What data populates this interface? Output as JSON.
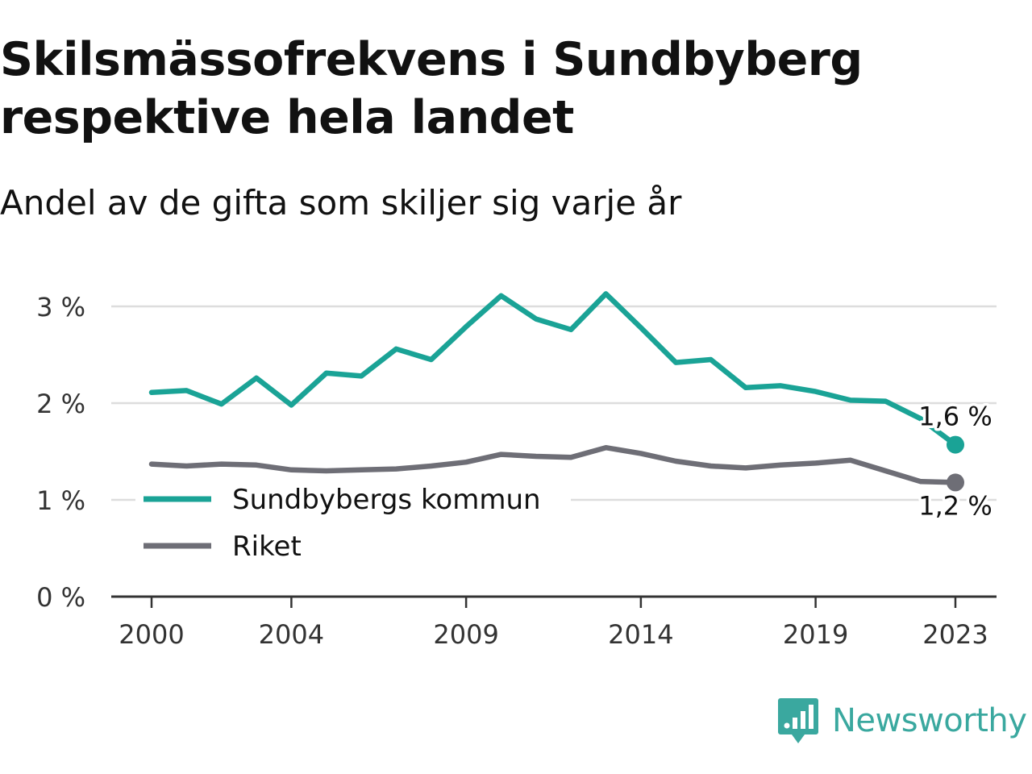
{
  "header": {
    "title": "Skilsmässofrekvens i Sundbyberg respektive hela landet",
    "subtitle": "Andel av de gifta som skiljer sig varje år"
  },
  "brand": {
    "name": "Newsworthy",
    "icon": "newsworthy-logo-icon",
    "color": "#3aa89f"
  },
  "chart_data": {
    "type": "line",
    "title": "Skilsmässofrekvens i Sundbyberg respektive hela landet",
    "subtitle": "Andel av de gifta som skiljer sig varje år",
    "xlabel": "",
    "ylabel": "",
    "x": [
      2000,
      2001,
      2002,
      2003,
      2004,
      2005,
      2006,
      2007,
      2008,
      2009,
      2010,
      2011,
      2012,
      2013,
      2014,
      2015,
      2016,
      2017,
      2018,
      2019,
      2020,
      2021,
      2022,
      2023
    ],
    "x_ticks": [
      2000,
      2004,
      2009,
      2014,
      2019,
      2023
    ],
    "x_tick_labels": [
      "2000",
      "2004",
      "2009",
      "2014",
      "2019",
      "2023"
    ],
    "xlim": [
      2000,
      2023
    ],
    "y_ticks": [
      0,
      1,
      2,
      3
    ],
    "y_tick_labels": [
      "0 %",
      "1 %",
      "2 %",
      "3 %"
    ],
    "ylim": [
      0,
      3.3
    ],
    "grid": true,
    "legend_position": "bottom-left",
    "series": [
      {
        "name": "Sundbybergs kommun",
        "color": "#1aa396",
        "values": [
          2.11,
          2.13,
          1.99,
          2.26,
          1.98,
          2.31,
          2.28,
          2.56,
          2.45,
          2.79,
          3.11,
          2.87,
          2.76,
          3.13,
          2.78,
          2.42,
          2.45,
          2.16,
          2.18,
          2.12,
          2.03,
          2.02,
          1.84,
          1.57
        ],
        "end_label": "1,6 %"
      },
      {
        "name": "Riket",
        "color": "#6e6e76",
        "values": [
          1.37,
          1.35,
          1.37,
          1.36,
          1.31,
          1.3,
          1.31,
          1.32,
          1.35,
          1.39,
          1.47,
          1.45,
          1.44,
          1.54,
          1.48,
          1.4,
          1.35,
          1.33,
          1.36,
          1.38,
          1.41,
          1.3,
          1.19,
          1.18
        ],
        "end_label": "1,2 %"
      }
    ]
  }
}
